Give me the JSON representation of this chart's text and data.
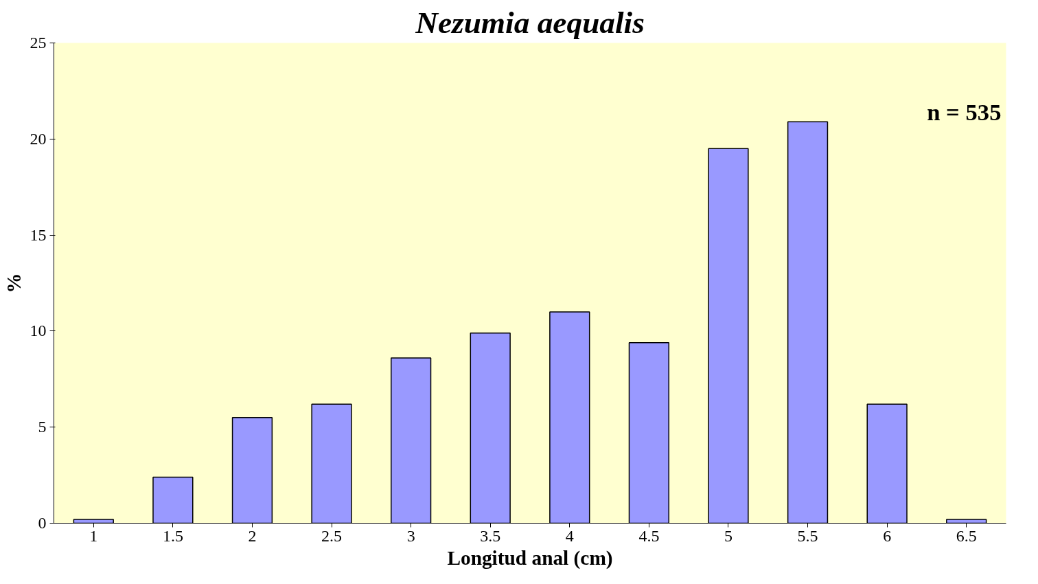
{
  "chart_data": {
    "type": "bar",
    "title": "Nezumia aequalis",
    "xlabel": "Longitud anal (cm)",
    "ylabel": "%",
    "categories": [
      "1",
      "1.5",
      "2",
      "2.5",
      "3",
      "3.5",
      "4",
      "4.5",
      "5",
      "5.5",
      "6",
      "6.5"
    ],
    "values": [
      0.2,
      2.4,
      5.5,
      6.2,
      8.6,
      9.9,
      11.0,
      9.4,
      19.5,
      20.9,
      6.2,
      0.2
    ],
    "color": "#9999ff",
    "ylim": [
      0,
      25
    ],
    "yticks": [
      0,
      5,
      10,
      15,
      20,
      25
    ],
    "grid": false,
    "annotations": [
      "n = 535"
    ]
  }
}
